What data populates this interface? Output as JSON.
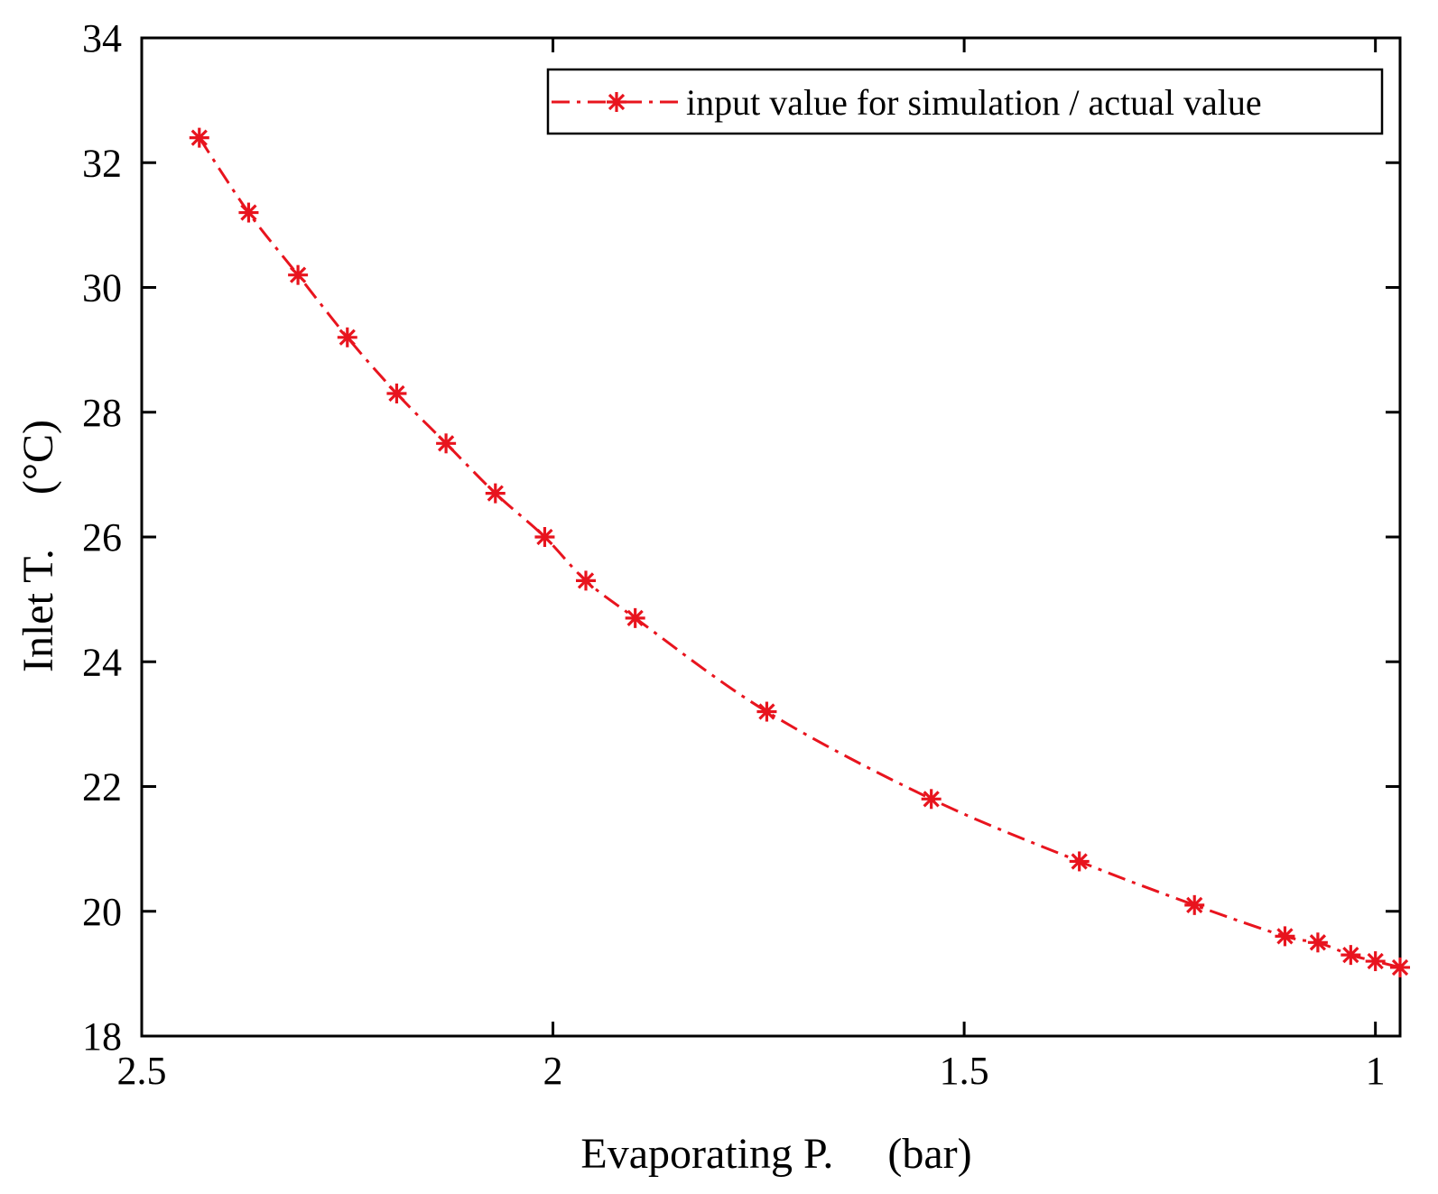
{
  "chart_data": {
    "type": "line",
    "title": "",
    "xlabel": "Evaporating P.     (bar)",
    "ylabel": "Inlet T.     (°C)",
    "xlim": [
      0.97,
      2.5
    ],
    "x_reversed": true,
    "ylim": [
      18,
      34
    ],
    "xticks": [
      2.5,
      2,
      1.5,
      1
    ],
    "xtick_labels": [
      "2.5",
      "2",
      "1.5",
      "1"
    ],
    "yticks": [
      18,
      20,
      22,
      24,
      26,
      28,
      30,
      32,
      34
    ],
    "ytick_labels": [
      "18",
      "20",
      "22",
      "24",
      "26",
      "28",
      "30",
      "32",
      "34"
    ],
    "grid": false,
    "legend_position": "top-right",
    "series": [
      {
        "name": "input value for simulation / actual value",
        "color": "#e8141e",
        "line_style": "dash-dot",
        "marker": "asterisk",
        "x": [
          2.43,
          2.37,
          2.31,
          2.25,
          2.19,
          2.13,
          2.07,
          2.01,
          1.96,
          1.9,
          1.74,
          1.54,
          1.36,
          1.22,
          1.11,
          1.07,
          1.03,
          1.0,
          0.97
        ],
        "y": [
          32.4,
          31.2,
          30.2,
          29.2,
          28.3,
          27.5,
          26.7,
          26.0,
          25.3,
          24.7,
          23.2,
          21.8,
          20.8,
          20.1,
          19.6,
          19.5,
          19.3,
          19.2,
          19.1
        ]
      }
    ]
  }
}
